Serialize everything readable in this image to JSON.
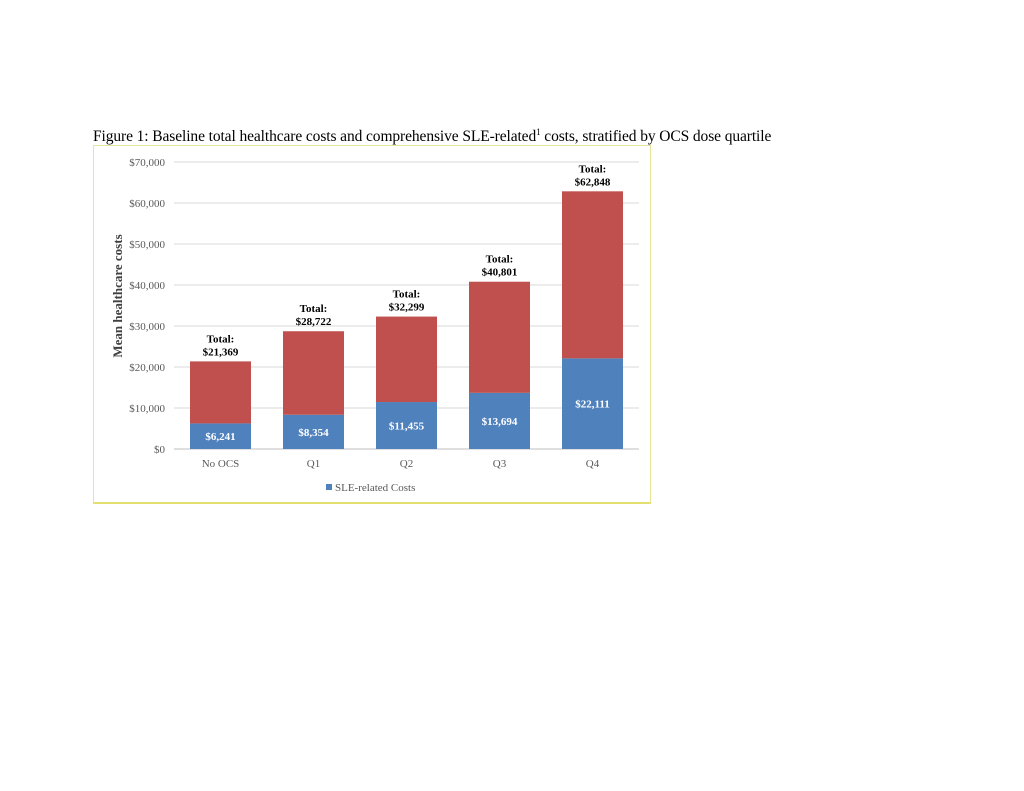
{
  "figure": {
    "title_main": "Figure 1: Baseline total healthcare costs and comprehensive SLE-related",
    "title_sup": "1",
    "title_end": " costs, stratified by OCS dose quartile"
  },
  "colors": {
    "sle": "#4f81bd",
    "other": "#c0504d",
    "grid": "#d9d9d9",
    "frame": "#e3e070"
  },
  "chart_data": {
    "type": "bar",
    "stacked": true,
    "categories": [
      "No OCS",
      "Q1",
      "Q2",
      "Q3",
      "Q4"
    ],
    "series": [
      {
        "name": "SLE-related Costs",
        "values": [
          6241,
          8354,
          11455,
          13694,
          22111
        ],
        "labels": [
          "$6,241",
          "$8,354",
          "$11,455",
          "$13,694",
          "$22,111"
        ]
      },
      {
        "values": [
          15128,
          20368,
          20844,
          27107,
          40737
        ]
      }
    ],
    "totals": [
      21369,
      28722,
      32299,
      40801,
      62848
    ],
    "total_prefix": "Total:",
    "total_labels": [
      "$21,369",
      "$28,722",
      "$32,299",
      "$40,801",
      "$62,848"
    ],
    "ylabel": "Mean healthcare costs",
    "ylim": [
      0,
      70000
    ],
    "yticks": [
      0,
      10000,
      20000,
      30000,
      40000,
      50000,
      60000,
      70000
    ],
    "ytick_labels": [
      "$0",
      "$10,000",
      "$20,000",
      "$30,000",
      "$40,000",
      "$50,000",
      "$60,000",
      "$70,000"
    ],
    "grid": true,
    "legend": {
      "position": "bottom",
      "entries": [
        "SLE-related Costs"
      ]
    }
  }
}
